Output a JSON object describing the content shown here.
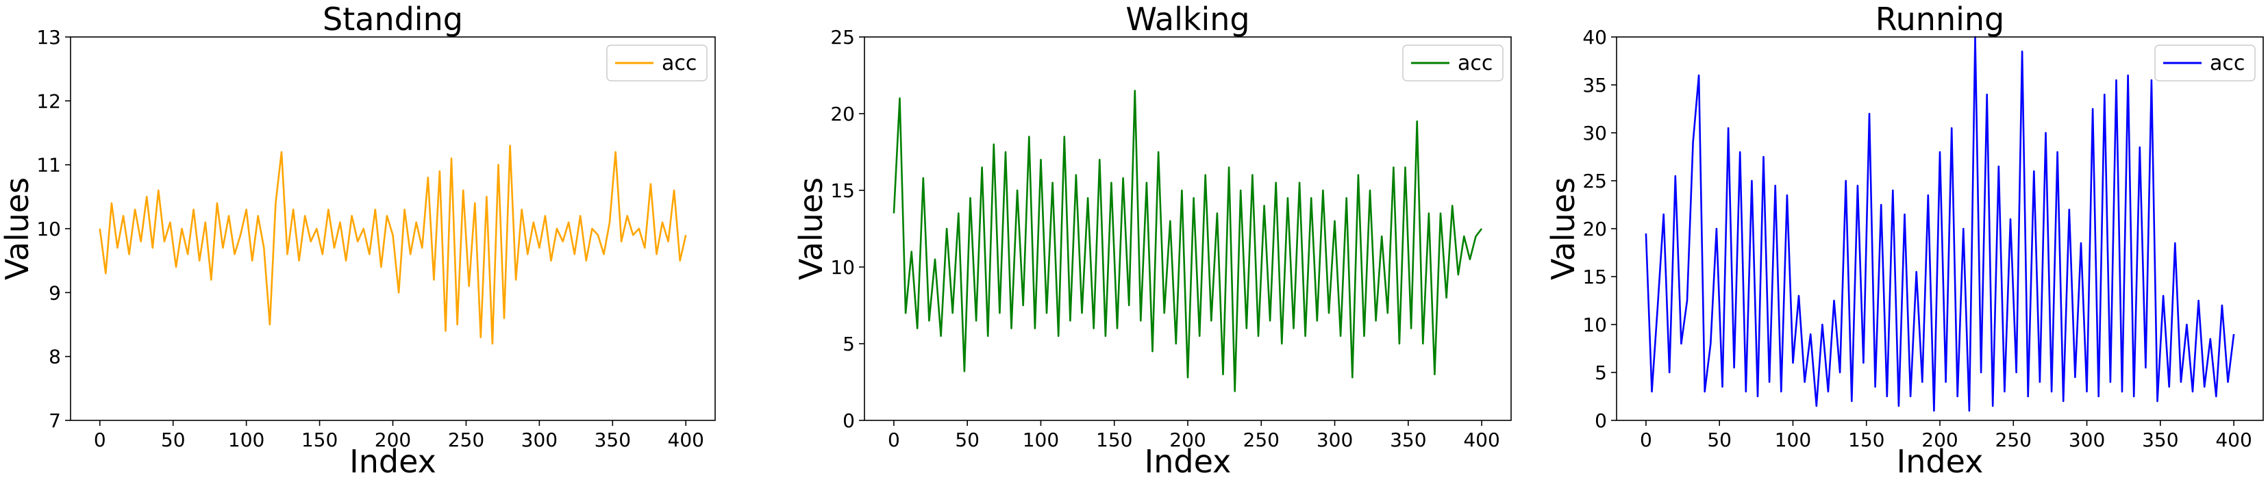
{
  "chart_data": [
    {
      "type": "line",
      "title": "Standing",
      "xlabel": "Index",
      "ylabel": "Values",
      "xlim": [
        -20,
        420
      ],
      "ylim": [
        7,
        13
      ],
      "xticks": [
        0,
        50,
        100,
        150,
        200,
        250,
        300,
        350,
        400
      ],
      "yticks": [
        7,
        8,
        9,
        10,
        11,
        12,
        13
      ],
      "grid": false,
      "legend_position": "top-right",
      "series": [
        {
          "name": "acc",
          "color": "#FFA500",
          "x": [
            0,
            4,
            8,
            12,
            16,
            20,
            24,
            28,
            32,
            36,
            40,
            44,
            48,
            52,
            56,
            60,
            64,
            68,
            72,
            76,
            80,
            84,
            88,
            92,
            96,
            100,
            104,
            108,
            112,
            116,
            120,
            124,
            128,
            132,
            136,
            140,
            144,
            148,
            152,
            156,
            160,
            164,
            168,
            172,
            176,
            180,
            184,
            188,
            192,
            196,
            200,
            204,
            208,
            212,
            216,
            220,
            224,
            228,
            232,
            236,
            240,
            244,
            248,
            252,
            256,
            260,
            264,
            268,
            272,
            276,
            280,
            284,
            288,
            292,
            296,
            300,
            304,
            308,
            312,
            316,
            320,
            324,
            328,
            332,
            336,
            340,
            344,
            348,
            352,
            356,
            360,
            364,
            368,
            372,
            376,
            380,
            384,
            388,
            392,
            396,
            400
          ],
          "values": [
            10.0,
            9.3,
            10.4,
            9.7,
            10.2,
            9.6,
            10.3,
            9.8,
            10.5,
            9.7,
            10.6,
            9.8,
            10.1,
            9.4,
            10.0,
            9.6,
            10.3,
            9.5,
            10.1,
            9.2,
            10.4,
            9.7,
            10.2,
            9.6,
            9.9,
            10.3,
            9.5,
            10.2,
            9.7,
            8.5,
            10.4,
            11.2,
            9.6,
            10.3,
            9.5,
            10.2,
            9.8,
            10.0,
            9.6,
            10.3,
            9.7,
            10.1,
            9.5,
            10.2,
            9.8,
            10.0,
            9.6,
            10.3,
            9.4,
            10.2,
            9.9,
            9.0,
            10.3,
            9.6,
            10.1,
            9.7,
            10.8,
            9.2,
            10.9,
            8.4,
            11.1,
            8.5,
            10.6,
            9.1,
            10.4,
            8.3,
            10.5,
            8.2,
            11.0,
            8.6,
            11.3,
            9.2,
            10.3,
            9.6,
            10.1,
            9.7,
            10.2,
            9.5,
            10.0,
            9.8,
            10.1,
            9.6,
            10.2,
            9.5,
            10.0,
            9.9,
            9.6,
            10.1,
            11.2,
            9.8,
            10.2,
            9.9,
            10.0,
            9.7,
            10.7,
            9.6,
            10.1,
            9.8,
            10.6,
            9.5,
            9.9
          ]
        }
      ]
    },
    {
      "type": "line",
      "title": "Walking",
      "xlabel": "Index",
      "ylabel": "Values",
      "xlim": [
        -20,
        420
      ],
      "ylim": [
        0,
        25
      ],
      "xticks": [
        0,
        50,
        100,
        150,
        200,
        250,
        300,
        350,
        400
      ],
      "yticks": [
        0,
        5,
        10,
        15,
        20,
        25
      ],
      "grid": false,
      "legend_position": "top-right",
      "series": [
        {
          "name": "acc",
          "color": "#008000",
          "x": [
            0,
            4,
            8,
            12,
            16,
            20,
            24,
            28,
            32,
            36,
            40,
            44,
            48,
            52,
            56,
            60,
            64,
            68,
            72,
            76,
            80,
            84,
            88,
            92,
            96,
            100,
            104,
            108,
            112,
            116,
            120,
            124,
            128,
            132,
            136,
            140,
            144,
            148,
            152,
            156,
            160,
            164,
            168,
            172,
            176,
            180,
            184,
            188,
            192,
            196,
            200,
            204,
            208,
            212,
            216,
            220,
            224,
            228,
            232,
            236,
            240,
            244,
            248,
            252,
            256,
            260,
            264,
            268,
            272,
            276,
            280,
            284,
            288,
            292,
            296,
            300,
            304,
            308,
            312,
            316,
            320,
            324,
            328,
            332,
            336,
            340,
            344,
            348,
            352,
            356,
            360,
            364,
            368,
            372,
            376,
            380,
            384,
            388,
            392,
            396,
            400
          ],
          "values": [
            13.5,
            21.0,
            7.0,
            11.0,
            6.0,
            15.8,
            6.5,
            10.5,
            5.5,
            12.5,
            7.0,
            13.5,
            3.2,
            14.5,
            6.5,
            16.5,
            5.5,
            18.0,
            7.0,
            17.5,
            6.0,
            15.0,
            7.5,
            18.5,
            6.0,
            17.0,
            7.0,
            15.5,
            5.5,
            18.5,
            6.5,
            16.0,
            7.0,
            14.5,
            6.0,
            17.0,
            5.5,
            15.5,
            6.0,
            15.8,
            7.5,
            21.5,
            6.5,
            15.5,
            4.5,
            17.5,
            7.0,
            13.0,
            5.0,
            15.0,
            2.8,
            14.5,
            5.5,
            16.0,
            6.5,
            13.5,
            3.0,
            16.5,
            1.9,
            15.0,
            6.0,
            16.0,
            5.5,
            14.0,
            6.5,
            15.5,
            5.0,
            14.5,
            6.0,
            15.5,
            5.5,
            14.5,
            6.5,
            15.0,
            7.0,
            13.0,
            5.5,
            14.5,
            2.8,
            16.0,
            5.5,
            15.0,
            6.5,
            12.0,
            7.0,
            16.5,
            5.0,
            16.5,
            6.0,
            19.5,
            5.0,
            13.5,
            3.0,
            13.5,
            8.0,
            14.0,
            9.5,
            12.0,
            10.5,
            12.0,
            12.5
          ]
        }
      ]
    },
    {
      "type": "line",
      "title": "Running",
      "xlabel": "Index",
      "ylabel": "Values",
      "xlim": [
        -20,
        420
      ],
      "ylim": [
        0,
        40
      ],
      "xticks": [
        0,
        50,
        100,
        150,
        200,
        250,
        300,
        350,
        400
      ],
      "yticks": [
        0,
        5,
        10,
        15,
        20,
        25,
        30,
        35,
        40
      ],
      "grid": false,
      "legend_position": "top-right",
      "series": [
        {
          "name": "acc",
          "color": "#0000FF",
          "x": [
            0,
            4,
            8,
            12,
            16,
            20,
            24,
            28,
            32,
            36,
            40,
            44,
            48,
            52,
            56,
            60,
            64,
            68,
            72,
            76,
            80,
            84,
            88,
            92,
            96,
            100,
            104,
            108,
            112,
            116,
            120,
            124,
            128,
            132,
            136,
            140,
            144,
            148,
            152,
            156,
            160,
            164,
            168,
            172,
            176,
            180,
            184,
            188,
            192,
            196,
            200,
            204,
            208,
            212,
            216,
            220,
            224,
            228,
            232,
            236,
            240,
            244,
            248,
            252,
            256,
            260,
            264,
            268,
            272,
            276,
            280,
            284,
            288,
            292,
            296,
            300,
            304,
            308,
            312,
            316,
            320,
            324,
            328,
            332,
            336,
            340,
            344,
            348,
            352,
            356,
            360,
            364,
            368,
            372,
            376,
            380,
            384,
            388,
            392,
            396,
            400
          ],
          "values": [
            19.5,
            3.0,
            12.0,
            21.5,
            5.0,
            25.5,
            8.0,
            12.5,
            29.0,
            36.0,
            3.0,
            8.0,
            20.0,
            3.5,
            30.5,
            5.5,
            28.0,
            3.0,
            25.0,
            2.5,
            27.5,
            4.0,
            24.5,
            3.0,
            23.5,
            6.0,
            13.0,
            4.0,
            9.0,
            1.5,
            10.0,
            3.0,
            12.5,
            5.0,
            25.0,
            2.0,
            24.5,
            6.0,
            32.0,
            3.5,
            22.5,
            2.5,
            24.0,
            1.5,
            21.5,
            2.5,
            15.5,
            4.0,
            23.5,
            1.0,
            28.0,
            4.0,
            30.5,
            2.5,
            20.0,
            1.0,
            40.0,
            5.0,
            34.0,
            1.5,
            26.5,
            3.0,
            21.0,
            5.0,
            38.5,
            2.5,
            26.0,
            4.0,
            30.0,
            3.0,
            28.0,
            2.0,
            22.0,
            4.5,
            18.5,
            3.0,
            32.5,
            2.5,
            34.0,
            4.0,
            35.5,
            3.0,
            36.0,
            2.5,
            28.5,
            5.5,
            35.5,
            2.0,
            13.0,
            3.5,
            18.5,
            4.0,
            10.0,
            3.0,
            12.5,
            3.5,
            8.5,
            2.5,
            12.0,
            4.0,
            9.0
          ]
        }
      ]
    }
  ]
}
